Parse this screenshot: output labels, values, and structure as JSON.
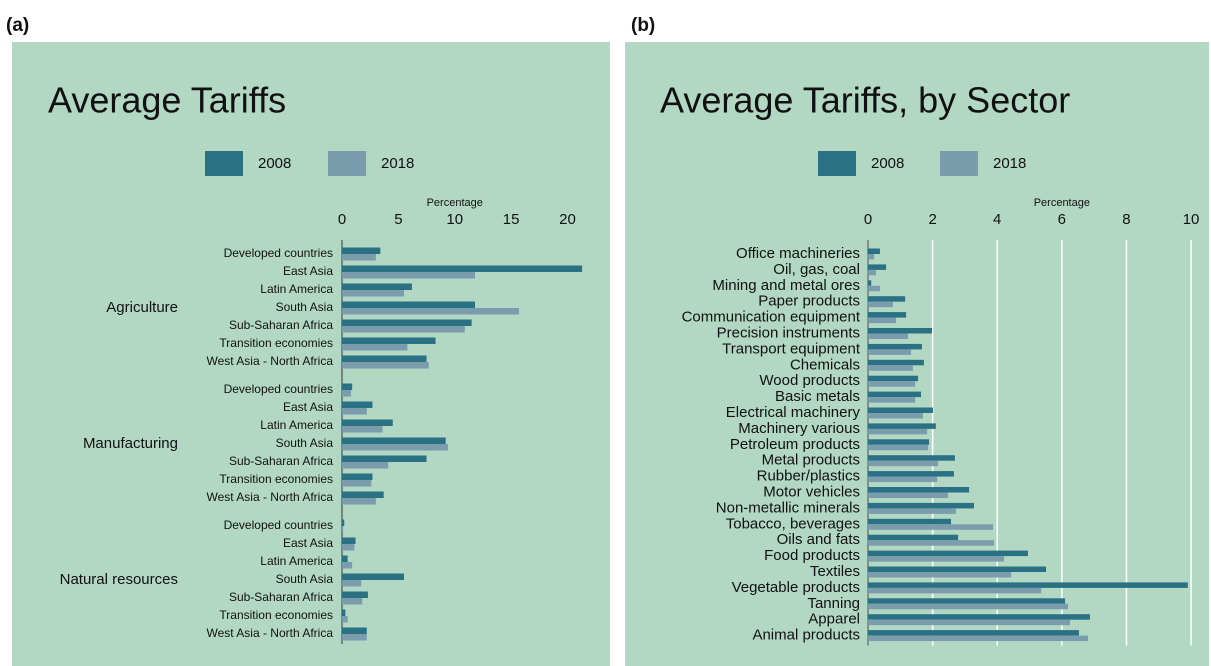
{
  "chart_data": [
    {
      "type": "bar",
      "orientation": "horizontal",
      "panel_label": "(a)",
      "title": "Average Tariffs",
      "xlabel": "Percentage",
      "groups": [
        "Agriculture",
        "Manufacturing",
        "Natural resources"
      ],
      "categories": [
        "Developed countries",
        "East Asia",
        "Latin America",
        "South Asia",
        "Sub-Saharan Africa",
        "Transition economies",
        "West Asia - North Africa",
        "Developed countries",
        "East Asia",
        "Latin America",
        "South Asia",
        "Sub-Saharan Africa",
        "Transition economies",
        "West Asia - North Africa",
        "Developed countries",
        "East Asia",
        "Latin America",
        "South Asia",
        "Sub-Saharan Africa",
        "Transition economies",
        "West Asia - North Africa"
      ],
      "series": [
        {
          "name": "2008",
          "color": "#2a7184",
          "values": [
            3.4,
            21.3,
            6.2,
            11.8,
            11.5,
            8.3,
            7.5,
            0.9,
            2.7,
            4.5,
            9.2,
            7.5,
            2.7,
            3.7,
            0.2,
            1.2,
            0.5,
            5.5,
            2.3,
            0.3,
            2.2
          ]
        },
        {
          "name": "2018",
          "color": "#7b9cad",
          "values": [
            3.0,
            11.8,
            5.5,
            15.7,
            10.9,
            5.8,
            7.7,
            0.8,
            2.2,
            3.6,
            9.4,
            4.1,
            2.6,
            3.0,
            0.1,
            1.1,
            0.9,
            1.7,
            1.8,
            0.5,
            2.2
          ]
        }
      ],
      "xlim": [
        0,
        22
      ],
      "xticks": [
        0,
        5,
        10,
        15,
        20
      ],
      "grid": false,
      "legend": "top"
    },
    {
      "type": "bar",
      "orientation": "horizontal",
      "panel_label": "(b)",
      "title": "Average Tariffs, by Sector",
      "xlabel": "Percentage",
      "categories": [
        "Office machineries",
        "Oil, gas, coal",
        "Mining and metal ores",
        "Paper products",
        "Communication equipment",
        "Precision instruments",
        "Transport equipment",
        "Chemicals",
        "Wood products",
        "Basic metals",
        "Electrical machinery",
        "Machinery various",
        "Petroleum products",
        "Metal products",
        "Rubber/plastics",
        "Motor vehicles",
        "Non-metallic minerals",
        "Tobacco, beverages",
        "Oils and fats",
        "Food products",
        "Textiles",
        "Vegetable products",
        "Tanning",
        "Apparel",
        "Animal products"
      ],
      "series": [
        {
          "name": "2008",
          "color": "#2a7184",
          "values": [
            0.37,
            0.56,
            0.1,
            1.15,
            1.18,
            1.98,
            1.67,
            1.73,
            1.55,
            1.64,
            2.01,
            2.1,
            1.89,
            2.69,
            2.66,
            3.13,
            3.28,
            2.57,
            2.79,
            4.95,
            5.51,
            9.9,
            6.1,
            6.87,
            6.53
          ]
        },
        {
          "name": "2018",
          "color": "#7b9cad",
          "values": [
            0.19,
            0.25,
            0.37,
            0.77,
            0.87,
            1.24,
            1.33,
            1.39,
            1.46,
            1.46,
            1.7,
            1.83,
            1.86,
            2.17,
            2.14,
            2.48,
            2.72,
            3.87,
            3.9,
            4.21,
            4.43,
            5.36,
            6.19,
            6.25,
            6.81
          ]
        }
      ],
      "xlim": [
        0,
        10.4
      ],
      "xticks": [
        0,
        2,
        4,
        6,
        8,
        10
      ],
      "grid": true,
      "legend": "top"
    }
  ]
}
